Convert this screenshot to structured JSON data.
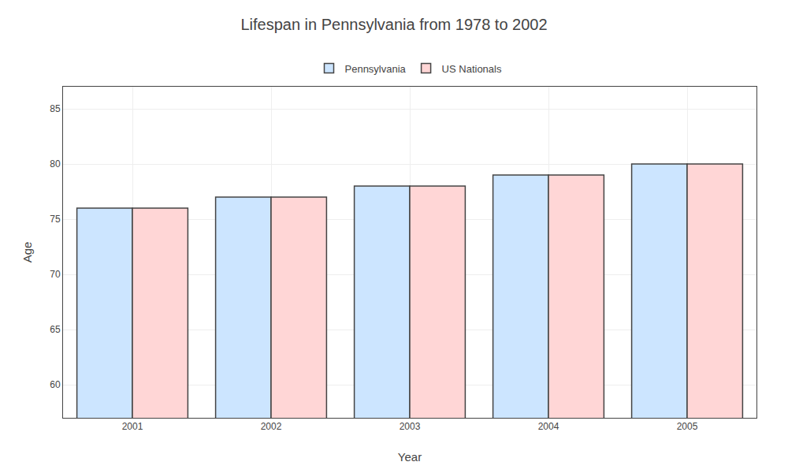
{
  "chart_data": {
    "type": "bar",
    "title": "Lifespan in Pennsylvania from 1978 to 2002",
    "x_label": "Year",
    "y_label": "Age",
    "categories": [
      "2001",
      "2002",
      "2003",
      "2004",
      "2005"
    ],
    "series": [
      {
        "name": "Pennsylvania",
        "color": "#cce5ff",
        "values": [
          76,
          77,
          78,
          79,
          80
        ]
      },
      {
        "name": "US Nationals",
        "color": "#ffd6d6",
        "values": [
          76,
          77,
          78,
          79,
          80
        ]
      }
    ],
    "ylim": [
      57,
      87
    ],
    "yticks": [
      60,
      65,
      70,
      75,
      80,
      85
    ],
    "grid": true,
    "legend": "top"
  }
}
